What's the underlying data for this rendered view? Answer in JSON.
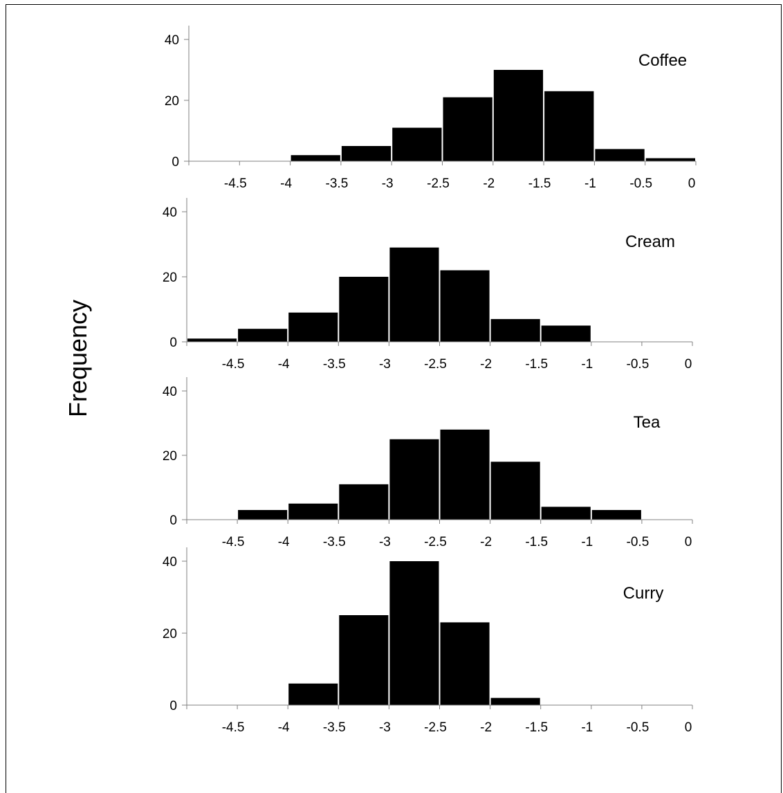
{
  "y_axis_label": "Frequency",
  "chart_data": [
    {
      "type": "bar",
      "title": "Coffee",
      "bin_edges": [
        -5,
        -4.5,
        -4,
        -3.5,
        -3,
        -2.5,
        -2,
        -1.5,
        -1,
        -0.5,
        0
      ],
      "values": [
        0,
        0,
        2,
        5,
        11,
        21,
        30,
        23,
        4,
        1
      ],
      "x_ticks": [
        -4.5,
        -4,
        -3.5,
        -3,
        -2.5,
        -2,
        -1.5,
        -1,
        -0.5,
        0
      ],
      "y_ticks": [
        0,
        20,
        40
      ],
      "xlim": [
        -5,
        0
      ],
      "ylim": [
        0,
        40
      ],
      "bar_color": "#000000"
    },
    {
      "type": "bar",
      "title": "Cream",
      "bin_edges": [
        -5,
        -4.5,
        -4,
        -3.5,
        -3,
        -2.5,
        -2,
        -1.5,
        -1,
        -0.5,
        0
      ],
      "values": [
        1,
        4,
        9,
        20,
        29,
        22,
        7,
        5,
        0,
        0
      ],
      "x_ticks": [
        -4.5,
        -4,
        -3.5,
        -3,
        -2.5,
        -2,
        -1.5,
        -1,
        -0.5,
        0
      ],
      "y_ticks": [
        0,
        20,
        40
      ],
      "xlim": [
        -5,
        0
      ],
      "ylim": [
        0,
        40
      ],
      "bar_color": "#000000"
    },
    {
      "type": "bar",
      "title": "Tea",
      "bin_edges": [
        -5,
        -4.5,
        -4,
        -3.5,
        -3,
        -2.5,
        -2,
        -1.5,
        -1,
        -0.5,
        0
      ],
      "values": [
        0,
        3,
        5,
        11,
        25,
        28,
        18,
        4,
        3,
        0
      ],
      "x_ticks": [
        -4.5,
        -4,
        -3.5,
        -3,
        -2.5,
        -2,
        -1.5,
        -1,
        -0.5,
        0
      ],
      "y_ticks": [
        0,
        20,
        40
      ],
      "xlim": [
        -5,
        0
      ],
      "ylim": [
        0,
        40
      ],
      "bar_color": "#000000"
    },
    {
      "type": "bar",
      "title": "Curry",
      "bin_edges": [
        -5,
        -4.5,
        -4,
        -3.5,
        -3,
        -2.5,
        -2,
        -1.5,
        -1,
        -0.5,
        0
      ],
      "values": [
        0,
        0,
        6,
        25,
        40,
        23,
        2,
        0,
        0,
        0
      ],
      "x_ticks": [
        -4.5,
        -4,
        -3.5,
        -3,
        -2.5,
        -2,
        -1.5,
        -1,
        -0.5,
        0
      ],
      "y_ticks": [
        0,
        20,
        40
      ],
      "xlim": [
        -5,
        0
      ],
      "ylim": [
        0,
        40
      ],
      "bar_color": "#000000"
    }
  ]
}
